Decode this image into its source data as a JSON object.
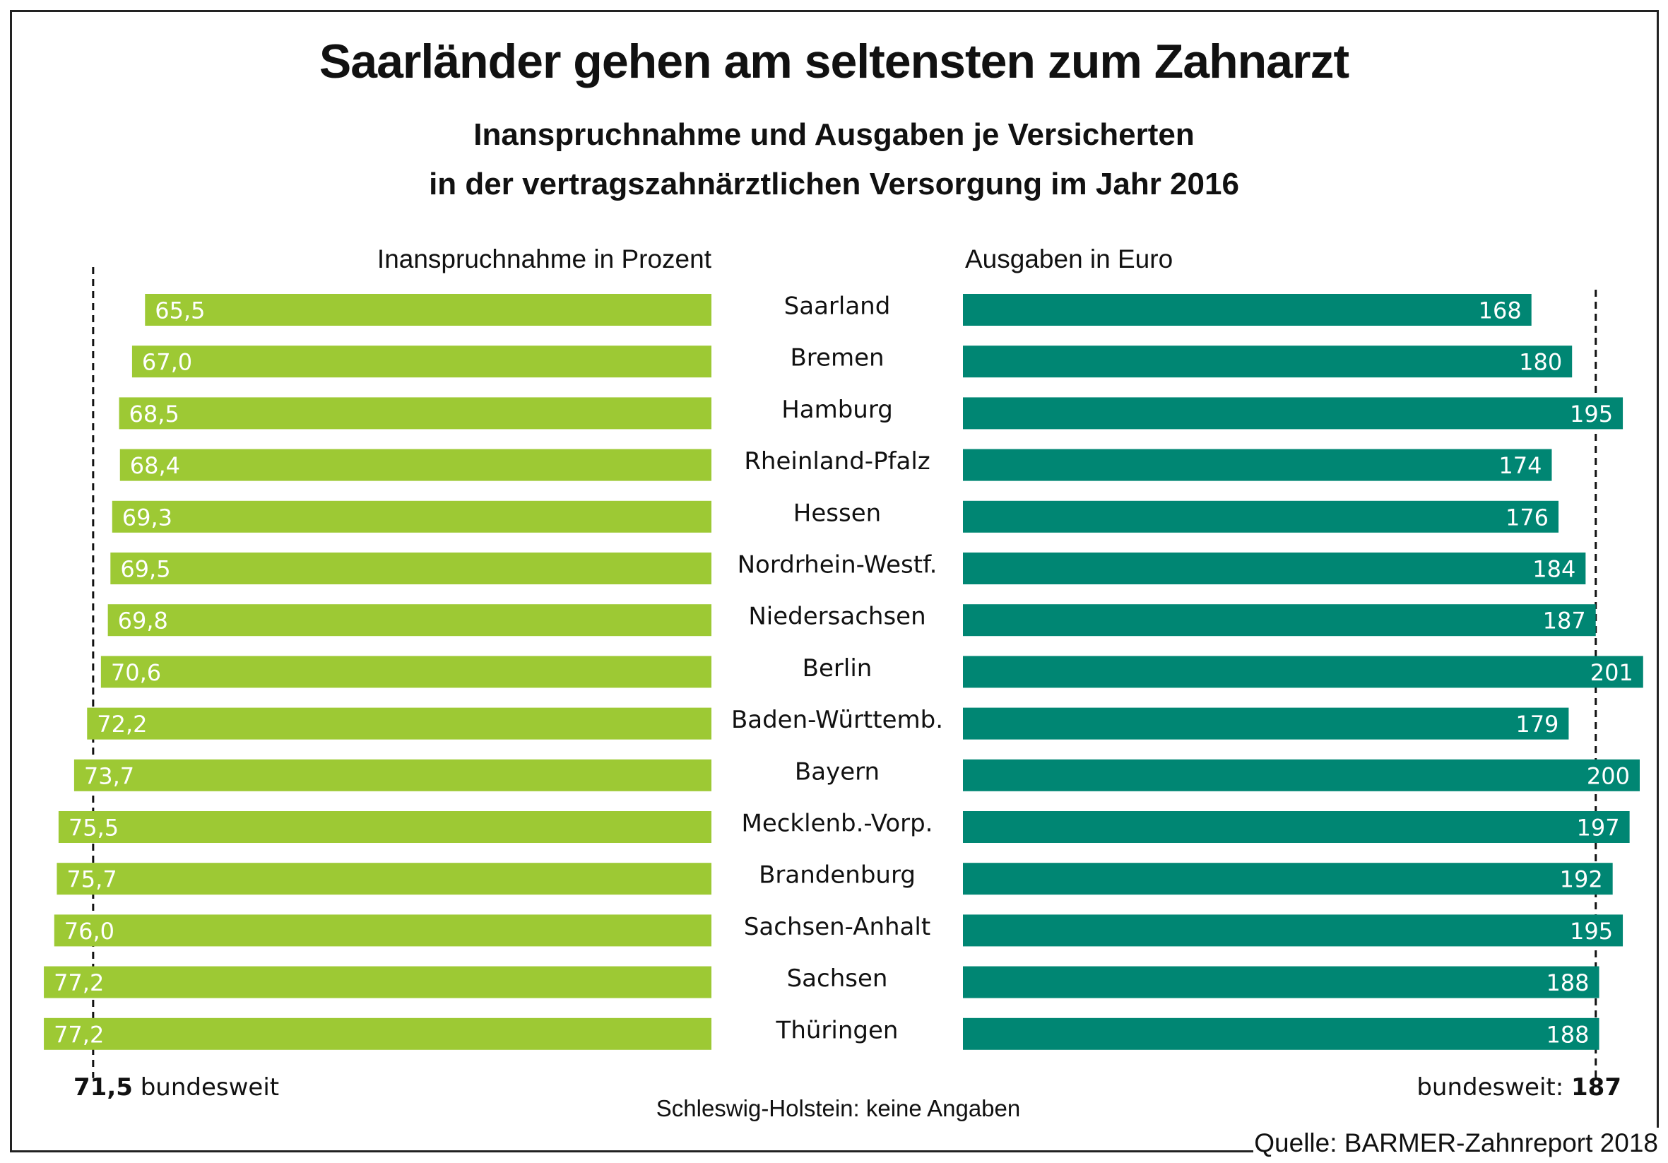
{
  "chart_data": {
    "type": "bar",
    "orientation": "horizontal-diverging",
    "title": "Saarländer gehen am seltensten zum Zahnarzt",
    "subtitle_lines": [
      "Inanspruchnahme und Ausgaben je Versicherten",
      "in der vertragszahnärztlichen Versorgung im Jahr 2016"
    ],
    "categories": [
      "Saarland",
      "Bremen",
      "Hamburg",
      "Rheinland-Pfalz",
      "Hessen",
      "Nordrhein-Westf.",
      "Niedersachsen",
      "Berlin",
      "Baden-Württemb.",
      "Bayern",
      "Mecklenb.-Vorp.",
      "Brandenburg",
      "Sachsen-Anhalt",
      "Sachsen",
      "Thüringen"
    ],
    "series": [
      {
        "name": "Inanspruchnahme in Prozent",
        "side": "left",
        "color": "#9dc934",
        "values": [
          65.5,
          67.0,
          68.5,
          68.4,
          69.3,
          69.5,
          69.8,
          70.6,
          72.2,
          73.7,
          75.5,
          75.7,
          76.0,
          77.2,
          77.2
        ],
        "labels": [
          "65,5",
          "67,0",
          "68,5",
          "68,4",
          "69,3",
          "69,5",
          "69,8",
          "70,6",
          "72,2",
          "73,7",
          "75,5",
          "75,7",
          "76,0",
          "77,2",
          "77,2"
        ],
        "reference": {
          "value": 71.5,
          "value_label": "71,5",
          "text": "bundesweit"
        }
      },
      {
        "name": "Ausgaben in Euro",
        "side": "right",
        "color": "#008673",
        "values": [
          168,
          180,
          195,
          174,
          176,
          184,
          187,
          201,
          179,
          200,
          197,
          192,
          195,
          188,
          188
        ],
        "labels": [
          "168",
          "180",
          "195",
          "174",
          "176",
          "184",
          "187",
          "201",
          "179",
          "200",
          "197",
          "192",
          "195",
          "188",
          "188"
        ],
        "reference": {
          "value": 187,
          "value_label": "187",
          "text": "bundesweit:"
        }
      }
    ],
    "xlabel": "",
    "ylabel": "",
    "grid": false,
    "legend": "none",
    "annotations": [
      "Schleswig-Holstein: keine Angaben",
      "Quelle: BARMER-Zahnreport 2018"
    ]
  },
  "header": {
    "title": "Saarländer gehen am seltensten zum Zahnarzt",
    "subtitle_line1": "Inanspruchnahme und Ausgaben je Versicherten",
    "subtitle_line2": "in der vertragszahnärztlichen Versorgung im Jahr 2016"
  },
  "axes": {
    "left_heading": "Inanspruchnahme in Prozent",
    "right_heading": "Ausgaben in Euro"
  },
  "footer": {
    "left_avg_value": "71,5",
    "left_avg_text": " bundesweit",
    "right_avg_text": "bundesweit: ",
    "right_avg_value": "187",
    "note": "Schleswig-Holstein: keine Angaben",
    "source": "Quelle: BARMER-Zahnreport 2018"
  }
}
